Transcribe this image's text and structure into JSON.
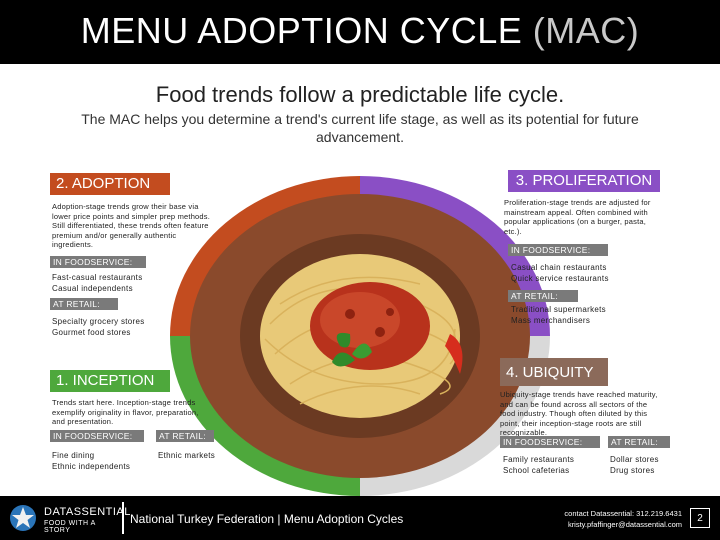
{
  "header": {
    "title_main": "MENU ADOPTION CYCLE",
    "title_acronym": "(MAC)"
  },
  "tagline": "Food trends follow a predictable life cycle.",
  "description": "The MAC helps you determine a trend's current life stage, as well as its potential for future advancement.",
  "colors": {
    "adoption": "#c34c1f",
    "proliferation": "#8a4fc5",
    "inception": "#4ea83c",
    "ubiquity": "#8b6a5a"
  },
  "adoption": {
    "label": "2. ADOPTION",
    "text": "Adoption-stage trends grow their base via lower price points and simpler prep methods. Still differentiated, these trends often feature premium and/or generally authentic ingredients.",
    "foodservice_tag": "IN FOODSERVICE:",
    "foodservice_items": [
      "Fast-casual restaurants",
      "Casual independents"
    ],
    "retail_tag": "AT RETAIL:",
    "retail_items": [
      "Specialty grocery stores",
      "Gourmet food stores"
    ]
  },
  "proliferation": {
    "label": "3. PROLIFERATION",
    "text": "Proliferation-stage trends are adjusted for mainstream appeal. Often combined with popular applications (on a burger, pasta, etc.).",
    "foodservice_tag": "IN FOODSERVICE:",
    "foodservice_items": [
      "Casual chain restaurants",
      "Quick service restaurants"
    ],
    "retail_tag": "AT RETAIL:",
    "retail_items": [
      "Traditional supermarkets",
      "Mass merchandisers"
    ]
  },
  "inception": {
    "label": "1. INCEPTION",
    "text": "Trends start here. Inception-stage trends exemplify originality in flavor, preparation, and presentation.",
    "foodservice_tag": "IN FOODSERVICE:",
    "foodservice_items": [
      "Fine dining",
      "Ethnic independents"
    ],
    "retail_tag": "AT RETAIL:",
    "retail_items": [
      "Ethnic markets"
    ]
  },
  "ubiquity": {
    "label": "4. UBIQUITY",
    "text": "Ubiquity-stage trends have reached maturity, and can be found across all sectors of the food industry. Though often diluted by this point, their inception-stage roots are still recognizable.",
    "foodservice_tag": "IN FOODSERVICE:",
    "foodservice_items": [
      "Family restaurants",
      "School cafeterias"
    ],
    "retail_tag": "AT RETAIL:",
    "retail_items": [
      "Dollar stores",
      "Drug stores"
    ]
  },
  "footer": {
    "logo_name": "DATASSENTIAL",
    "logo_tagline": "FOOD WITH A STORY",
    "title": "National Turkey Federation | Menu Adoption Cycles",
    "contact_line1": "contact Datassential: 312.219.6431",
    "contact_line2": "kristy.pfaffinger@datassential.com",
    "page_number": "2"
  }
}
